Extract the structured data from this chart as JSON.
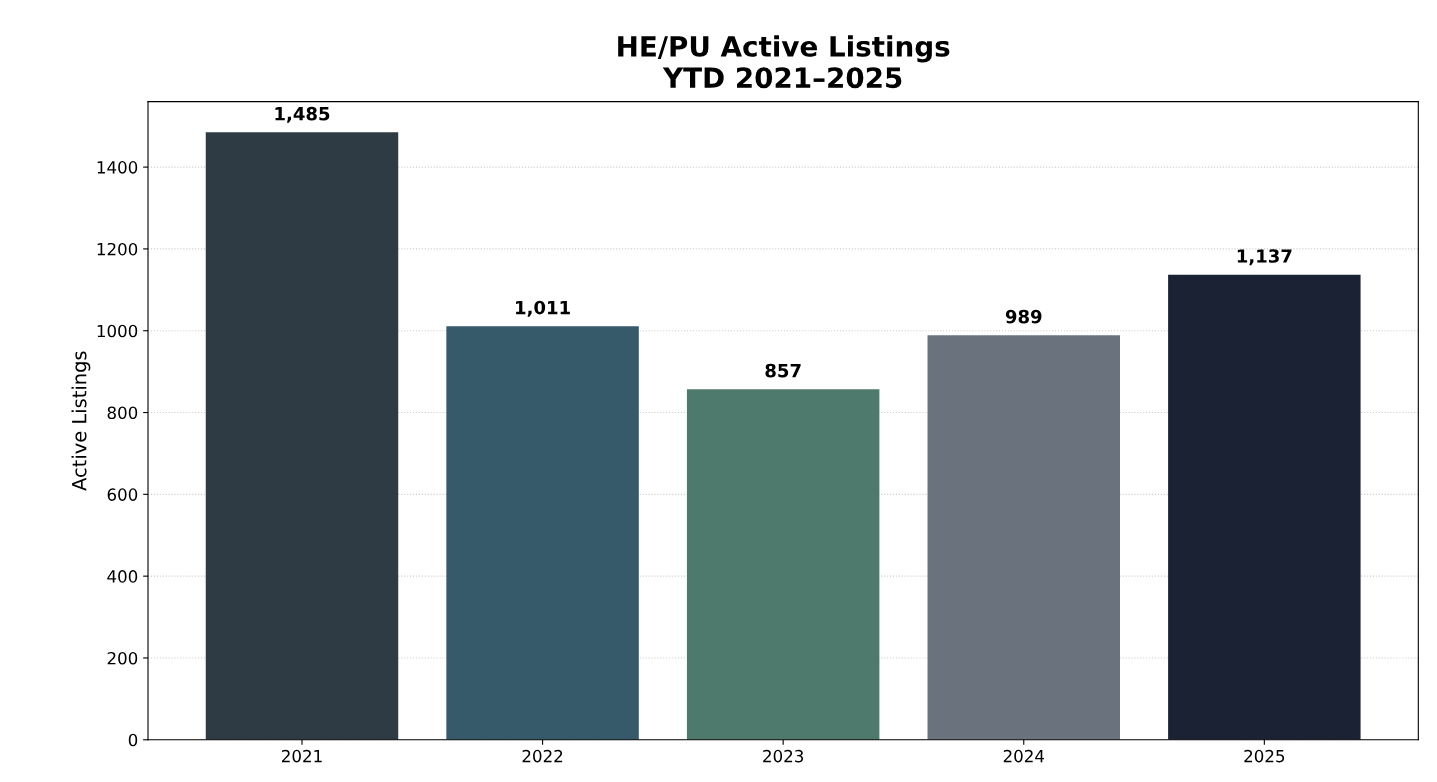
{
  "chart_data": {
    "type": "bar",
    "title": "HE/PU Active Listings\nYTD 2021–2025",
    "ylabel": "Active Listings",
    "categories": [
      "2021",
      "2022",
      "2023",
      "2024",
      "2025"
    ],
    "values": [
      1485,
      1011,
      857,
      989,
      1137
    ],
    "value_labels": [
      "1,485",
      "1,011",
      "857",
      "989",
      "1,137"
    ],
    "colors": [
      "#2e3b45",
      "#365a6a",
      "#4e7a6e",
      "#6a737d",
      "#1b2234"
    ],
    "ylim": [
      0,
      1560
    ],
    "yticks": [
      0,
      200,
      400,
      600,
      800,
      1000,
      1200,
      1400
    ],
    "grid": "y"
  }
}
